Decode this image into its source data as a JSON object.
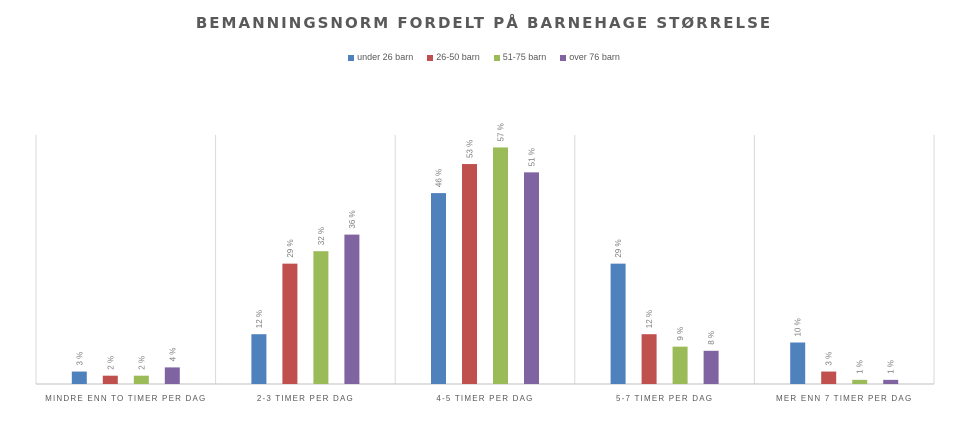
{
  "chart_data": {
    "type": "bar",
    "title": "BEMANNINGSNORM FORDELT PÅ BARNEHAGE STØRRELSE",
    "categories": [
      "MINDRE ENN TO TIMER PER DAG",
      "2-3 TIMER PER DAG",
      "4-5 TIMER PER DAG",
      "5-7 TIMER PER DAG",
      "MER ENN 7 TIMER PER DAG"
    ],
    "series": [
      {
        "name": "under 26 barn",
        "color": "#4F81BD",
        "values": [
          3,
          12,
          46,
          29,
          10
        ]
      },
      {
        "name": "26-50 barn",
        "color": "#C0504D",
        "values": [
          2,
          29,
          53,
          12,
          3
        ]
      },
      {
        "name": "51-75 barn",
        "color": "#9BBB59",
        "values": [
          2,
          32,
          57,
          9,
          1
        ]
      },
      {
        "name": "over 76 barn",
        "color": "#8064A2",
        "values": [
          4,
          36,
          51,
          8,
          1
        ]
      }
    ],
    "value_suffix": " %",
    "xlabel": "",
    "ylabel": "",
    "ylim": [
      0,
      60
    ],
    "legend_position": "top",
    "grid": false
  }
}
